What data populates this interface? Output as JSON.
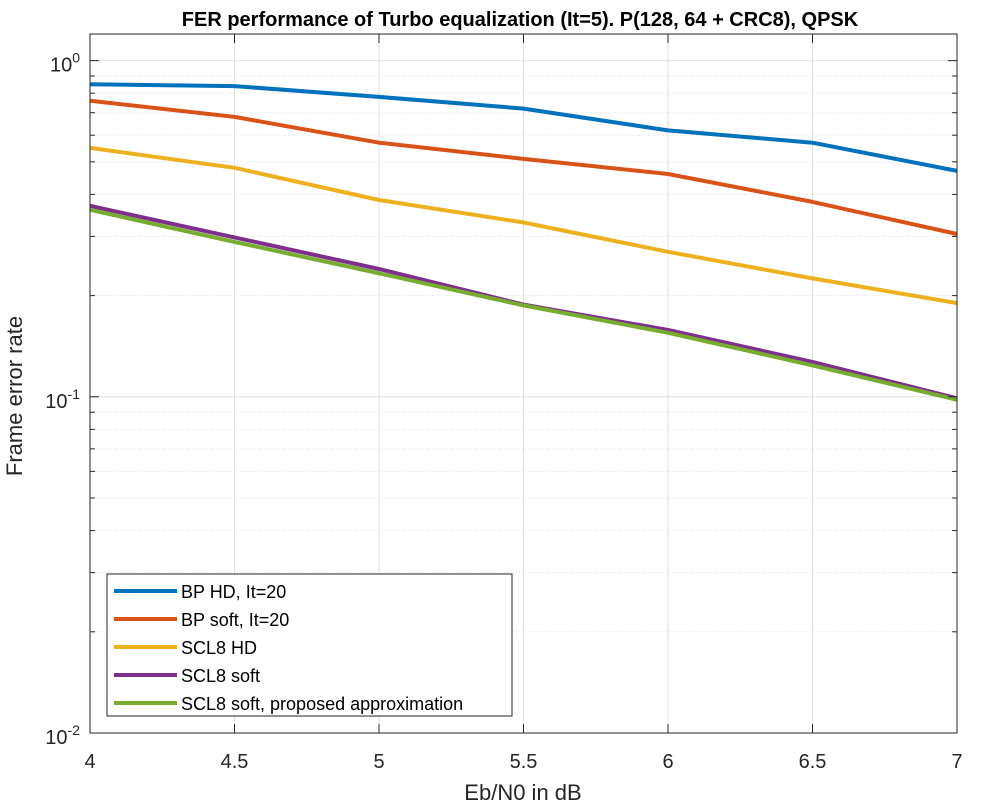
{
  "chart_data": {
    "type": "line",
    "title": "FER performance of Turbo equalization (It=5). P(128, 64 + CRC8), QPSK",
    "xlabel": "Eb/N0 in dB",
    "ylabel": "Frame error rate",
    "yscale": "log",
    "xlim": [
      4,
      7
    ],
    "ylim": [
      0.01,
      1.2
    ],
    "grid": true,
    "minor_grid": true,
    "legend_position": "bottom-left",
    "x_ticks": [
      "4",
      "4.5",
      "5",
      "5.5",
      "6",
      "6.5",
      "7"
    ],
    "y_ticks": [
      {
        "value": 0.01,
        "base": "10",
        "exp": "-2"
      },
      {
        "value": 0.1,
        "base": "10",
        "exp": "-1"
      },
      {
        "value": 1,
        "base": "10",
        "exp": "0"
      }
    ],
    "x": [
      4,
      4.5,
      5,
      5.5,
      6,
      6.5,
      7
    ],
    "series": [
      {
        "name": "BP HD, It=20",
        "color": "#0072BD",
        "values": [
          0.85,
          0.84,
          0.78,
          0.72,
          0.62,
          0.57,
          0.47
        ]
      },
      {
        "name": "BP soft, It=20",
        "color": "#D95319",
        "values": [
          0.76,
          0.68,
          0.57,
          0.51,
          0.46,
          0.38,
          0.305
        ]
      },
      {
        "name": "SCL8 HD",
        "color": "#EDB120",
        "values": [
          0.55,
          0.48,
          0.385,
          0.33,
          0.27,
          0.225,
          0.19
        ]
      },
      {
        "name": "SCL8 soft",
        "color": "#7E2F8E",
        "values": [
          0.37,
          0.298,
          0.24,
          0.188,
          0.158,
          0.127,
          0.099
        ]
      },
      {
        "name": "SCL8 soft, proposed approximation",
        "color": "#77AC30",
        "values": [
          0.36,
          0.289,
          0.233,
          0.187,
          0.155,
          0.124,
          0.098
        ]
      }
    ]
  }
}
